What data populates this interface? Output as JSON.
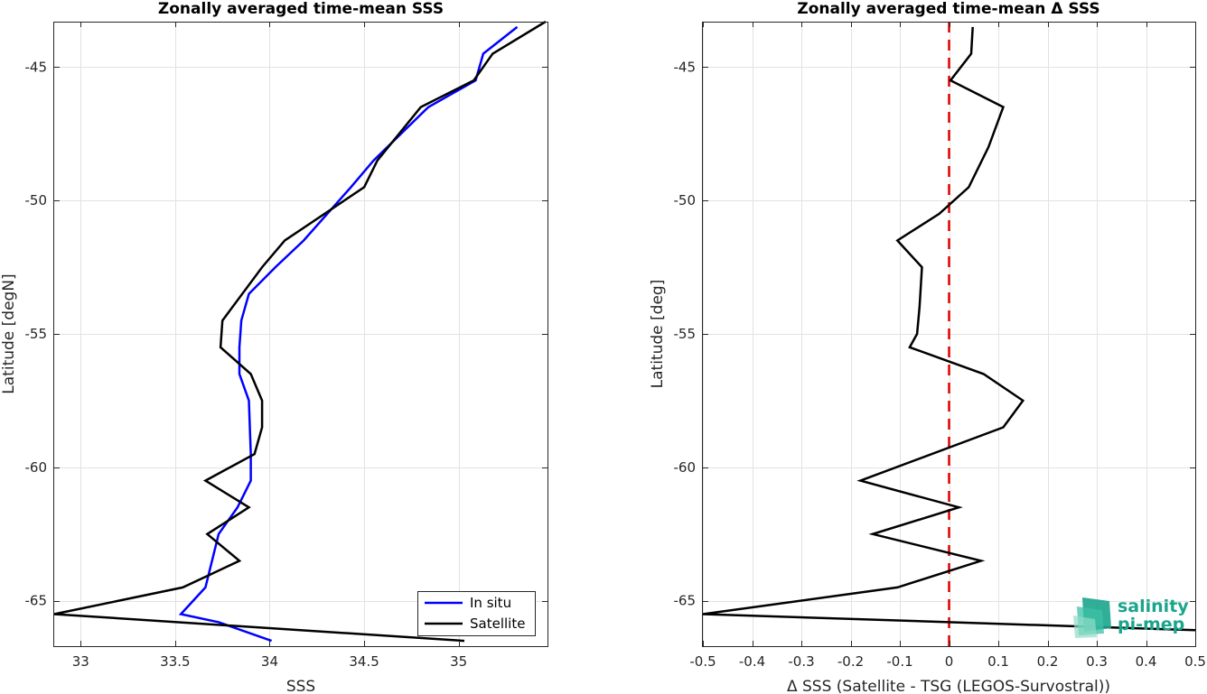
{
  "chart_data": [
    {
      "type": "line",
      "title": "Zonally averaged time-mean SSS",
      "xlabel": "SSS",
      "ylabel": "Latitude [degN]",
      "xlim": [
        32.86,
        35.47
      ],
      "ylim": [
        -66.7,
        -43.3
      ],
      "xticks": [
        33,
        33.5,
        34,
        34.5,
        35
      ],
      "yticks": [
        -45,
        -50,
        -55,
        -60,
        -65
      ],
      "grid": true,
      "legend": "bottom-right",
      "series": [
        {
          "name": "In situ",
          "color": "#0000ff",
          "x": [
            35.31,
            35.13,
            35.09,
            34.84,
            34.55,
            34.43,
            34.18,
            34.03,
            33.89,
            33.85,
            33.84,
            33.84,
            33.89,
            33.9,
            33.9,
            33.83,
            33.73,
            33.66,
            33.53,
            33.73,
            34.01
          ],
          "y": [
            -43.5,
            -44.5,
            -45.5,
            -46.5,
            -48.5,
            -49.5,
            -51.5,
            -52.5,
            -53.5,
            -54.5,
            -55.5,
            -56.5,
            -57.5,
            -59.5,
            -60.5,
            -61.5,
            -62.5,
            -64.5,
            -65.5,
            -65.8,
            -66.5
          ]
        },
        {
          "name": "Satellite",
          "color": "#000000",
          "x": [
            35.46,
            35.18,
            35.08,
            34.8,
            34.57,
            34.5,
            34.08,
            33.96,
            33.75,
            33.74,
            33.9,
            33.96,
            33.96,
            33.92,
            33.66,
            33.89,
            33.67,
            33.84,
            33.69,
            33.54,
            32.86,
            35.03
          ],
          "y": [
            -43.3,
            -44.5,
            -45.5,
            -46.5,
            -48.5,
            -49.5,
            -51.5,
            -52.5,
            -54.5,
            -55.5,
            -56.5,
            -57.5,
            -58.5,
            -59.5,
            -60.5,
            -61.5,
            -62.5,
            -63.5,
            -64.0,
            -64.5,
            -65.5,
            -66.5
          ]
        }
      ]
    },
    {
      "type": "line",
      "title": "Zonally averaged time-mean Δ SSS",
      "xlabel": "Δ SSS (Satellite - TSG (LEGOS-Survostral))",
      "ylabel": "Latitude [deg]",
      "xlim": [
        -0.5,
        0.5
      ],
      "ylim": [
        -66.7,
        -43.3
      ],
      "xticks": [
        -0.5,
        -0.4,
        -0.3,
        -0.2,
        -0.1,
        0,
        0.1,
        0.2,
        0.3,
        0.4,
        0.5
      ],
      "xticklabels": [
        "-0.5",
        "-0.4",
        "-0.3",
        "-0.2",
        "-0.1",
        "0",
        "0.1",
        "0.2",
        "0.3",
        "0.4",
        "0.5"
      ],
      "yticks": [
        -45,
        -50,
        -55,
        -60,
        -65
      ],
      "grid": true,
      "reference_line": {
        "x": 0,
        "color": "#e00000",
        "style": "dashed"
      },
      "series": [
        {
          "color": "#000000",
          "x": [
            0.048,
            0.045,
            0.003,
            0.11,
            0.08,
            0.04,
            -0.02,
            -0.105,
            -0.055,
            -0.06,
            -0.065,
            -0.08,
            0.07,
            0.15,
            0.11,
            -0.18,
            0.02,
            -0.155,
            0.065,
            -0.105,
            -0.5,
            0.5
          ],
          "y": [
            -43.5,
            -44.5,
            -45.5,
            -46.5,
            -48.0,
            -49.5,
            -50.5,
            -51.5,
            -52.5,
            -54.0,
            -55.0,
            -55.5,
            -56.5,
            -57.5,
            -58.5,
            -60.5,
            -61.5,
            -62.5,
            -63.5,
            -64.5,
            -65.5,
            -66.1
          ]
        }
      ]
    }
  ],
  "logo": {
    "line1": "salinity",
    "line2": "pi-mep",
    "color": "#1aa58c"
  },
  "legend_labels": {
    "in_situ": "In situ",
    "satellite": "Satellite"
  }
}
